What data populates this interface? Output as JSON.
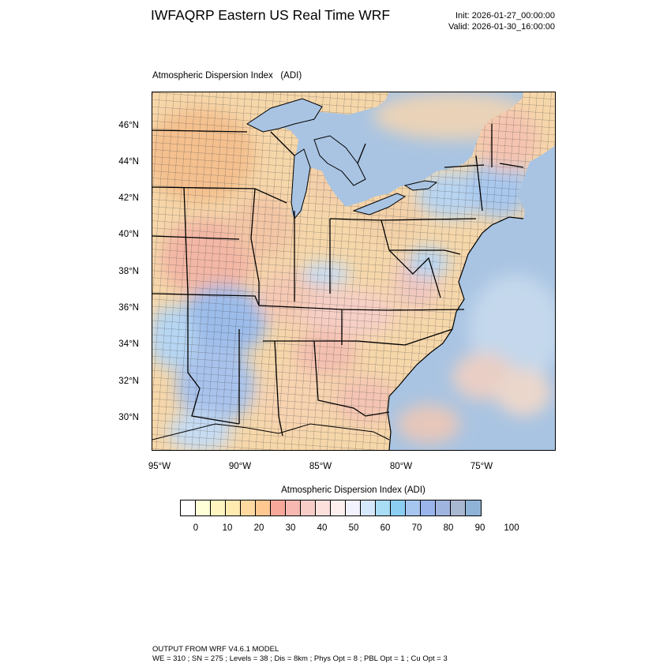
{
  "header": {
    "title": "IWFAQRP Eastern US Real Time WRF",
    "init": "Init: 2026-01-27_00:00:00",
    "valid": "Valid: 2026-01-30_16:00:00"
  },
  "map": {
    "subtitle": "Atmospheric Dispersion Index   (ADI)",
    "lat_labels": [
      "46°N",
      "44°N",
      "42°N",
      "40°N",
      "38°N",
      "36°N",
      "34°N",
      "32°N",
      "30°N"
    ],
    "lon_labels": [
      "95°W",
      "90°W",
      "85°W",
      "80°W",
      "75°W"
    ],
    "colors": {
      "ocean": "#a9c4e2",
      "land_low": "#f7d6a4",
      "land_mid": "#f2b8a4",
      "land_high": "#b7d4f0",
      "lake": "#a9c4e2",
      "state_line": "#000000",
      "county_line": "#333333"
    }
  },
  "colorbar": {
    "title": "Atmospheric Dispersion Index  (ADI)",
    "colors": [
      "#ffffff",
      "#ffffd8",
      "#fff5c0",
      "#ffeab0",
      "#ffd9a0",
      "#ffc890",
      "#f7a898",
      "#f6b8b0",
      "#f8cdc8",
      "#fbe0dc",
      "#fcefee",
      "#f2f2ff",
      "#d6e8fb",
      "#a9dcf5",
      "#8ccdf2",
      "#a6c6f0",
      "#9bb5ec",
      "#a0b4e0",
      "#a8b8d0",
      "#8fb3d6"
    ],
    "tick_labels": [
      "0",
      "10",
      "20",
      "30",
      "40",
      "50",
      "60",
      "70",
      "80",
      "90",
      "100"
    ]
  },
  "footer": {
    "line1": "OUTPUT FROM WRF V4.6.1 MODEL",
    "line2": "WE = 310 ; SN = 275 ; Levels = 38 ; Dis = 8km ; Phys Opt = 8 ; PBL Opt = 1 ; Cu Opt = 3"
  }
}
